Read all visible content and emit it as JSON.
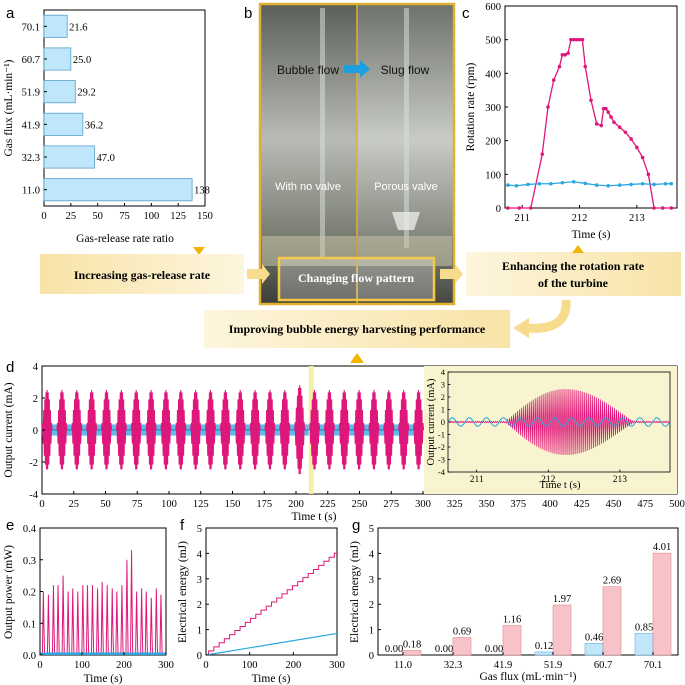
{
  "colors": {
    "magenta": "#e0177a",
    "blue": "#2aa7e0",
    "blue_fill": "#bfe6fb",
    "pink_fill": "#f7c3c8",
    "orange": "#f5b400",
    "inset_bg": "#f7f4cf",
    "box_fill": "#fcefc6"
  },
  "panels": {
    "a": "a",
    "b": "b",
    "c": "c",
    "d": "d",
    "e": "e",
    "f": "f",
    "g": "g"
  },
  "photo": {
    "left_flow": "Bubble flow",
    "right_flow": "Slug flow",
    "left_label": "With no valve",
    "right_label": "Porous valve"
  },
  "flow": {
    "box_left": "Increasing gas-release rate",
    "box_center": "Changing flow pattern",
    "box_right_line1": "Enhancing the rotation rate",
    "box_right_line2": "of the turbine",
    "box_bottom": "Improving bubble energy harvesting performance"
  },
  "chart_data": [
    {
      "id": "a",
      "type": "bar",
      "orientation": "horizontal",
      "xlabel": "Gas-release rate ratio",
      "ylabel": "Gas flux (mL·min⁻¹)",
      "categories": [
        "70.1",
        "60.7",
        "51.9",
        "41.9",
        "32.3",
        "11.0"
      ],
      "values": [
        21.6,
        25.0,
        29.2,
        36.2,
        47.0,
        138
      ],
      "value_labels": [
        "21.6",
        "25.0",
        "29.2",
        "36.2",
        "47.0",
        "138"
      ],
      "xlim": [
        0,
        150
      ],
      "xticks": [
        "0",
        "25",
        "50",
        "75",
        "100",
        "125",
        "150"
      ]
    },
    {
      "id": "c",
      "type": "line",
      "xlabel": "Time (s)",
      "ylabel": "Rotation rate (rpm)",
      "xlim": [
        210.7,
        213.7
      ],
      "ylim": [
        0,
        600
      ],
      "xticks": [
        "211",
        "212",
        "213"
      ],
      "yticks": [
        "0",
        "100",
        "200",
        "300",
        "400",
        "500",
        "600"
      ],
      "series": [
        {
          "name": "Porous valve",
          "color": "magenta",
          "x": [
            210.75,
            210.95,
            211.15,
            211.35,
            211.45,
            211.55,
            211.65,
            211.7,
            211.75,
            211.8,
            211.85,
            211.9,
            211.95,
            212.0,
            212.05,
            212.1,
            212.2,
            212.3,
            212.38,
            212.42,
            212.46,
            212.5,
            212.55,
            212.6,
            212.7,
            212.8,
            212.9,
            213.0,
            213.1,
            213.2,
            213.3,
            213.45,
            213.6
          ],
          "y": [
            0,
            0,
            0,
            160,
            300,
            380,
            420,
            455,
            455,
            460,
            500,
            500,
            500,
            500,
            500,
            420,
            320,
            250,
            245,
            295,
            295,
            285,
            270,
            255,
            240,
            225,
            205,
            180,
            150,
            100,
            0,
            0,
            0
          ]
        },
        {
          "name": "With no valve",
          "color": "blue",
          "x": [
            210.75,
            210.9,
            211.1,
            211.3,
            211.5,
            211.7,
            211.9,
            212.1,
            212.3,
            212.5,
            212.7,
            212.9,
            213.1,
            213.3,
            213.5,
            213.6
          ],
          "y": [
            68,
            66,
            70,
            72,
            72,
            75,
            78,
            73,
            68,
            66,
            68,
            70,
            72,
            70,
            72,
            72
          ]
        }
      ]
    },
    {
      "id": "d",
      "type": "line",
      "xlabel": "Time t (s)",
      "ylabel": "Output current (mA)",
      "xlim": [
        0,
        500
      ],
      "ylim": [
        -4,
        4
      ],
      "xticks": [
        "0",
        "25",
        "50",
        "75",
        "100",
        "125",
        "150",
        "175",
        "200",
        "225",
        "250",
        "275",
        "300",
        "325",
        "350",
        "375",
        "400",
        "425",
        "450",
        "475",
        "500"
      ],
      "yticks": [
        "-4",
        "-2",
        "0",
        "2",
        "4"
      ],
      "burst_period_s": 11.7,
      "burst_count": 26,
      "porous_amplitude_mA": 2.5,
      "no_valve_amplitude_mA": 0.35,
      "highlight_time_s": 212,
      "inset": {
        "xlabel": "Time t (s)",
        "ylabel": "Output current (mA)",
        "xlim": [
          210.6,
          213.7
        ],
        "ylim": [
          -4,
          4
        ],
        "xticks": [
          "211",
          "212",
          "213"
        ],
        "yticks": [
          "-4",
          "-3",
          "-2",
          "-1",
          "0",
          "1",
          "2",
          "3",
          "4"
        ]
      }
    },
    {
      "id": "e",
      "type": "line",
      "xlabel": "Time (s)",
      "ylabel": "Output power (mW)",
      "xlim": [
        0,
        300
      ],
      "ylim": [
        0,
        0.4
      ],
      "xticks": [
        "0",
        "100",
        "200",
        "300"
      ],
      "yticks": [
        "0.0",
        "0.1",
        "0.2",
        "0.3",
        "0.4"
      ],
      "series": [
        {
          "name": "Porous valve",
          "color": "magenta",
          "peak_times": [
            8,
            20,
            32,
            43,
            55,
            67,
            78,
            90,
            102,
            113,
            125,
            137,
            148,
            160,
            172,
            183,
            195,
            207,
            218,
            230,
            242,
            253,
            265,
            277,
            288
          ],
          "peak_values": [
            0.2,
            0.19,
            0.22,
            0.22,
            0.25,
            0.2,
            0.21,
            0.2,
            0.22,
            0.22,
            0.22,
            0.21,
            0.23,
            0.22,
            0.21,
            0.2,
            0.22,
            0.3,
            0.33,
            0.2,
            0.21,
            0.2,
            0.18,
            0.21,
            0.19
          ]
        },
        {
          "name": "With no valve",
          "color": "blue",
          "level": 0.004
        }
      ]
    },
    {
      "id": "f",
      "type": "line",
      "xlabel": "Time (s)",
      "ylabel": "Electrical energy (mJ)",
      "xlim": [
        0,
        300
      ],
      "ylim": [
        0,
        5
      ],
      "xticks": [
        "0",
        "100",
        "200",
        "300"
      ],
      "yticks": [
        "0",
        "1",
        "2",
        "3",
        "4",
        "5"
      ],
      "series": [
        {
          "name": "Porous valve",
          "color": "magenta",
          "final_value": 4.01,
          "steps": 25
        },
        {
          "name": "With no valve",
          "color": "blue",
          "final_value": 0.85
        }
      ]
    },
    {
      "id": "g",
      "type": "bar",
      "xlabel": "Gas flux (mL·min⁻¹)",
      "ylabel": "Electrical energy (mJ)",
      "categories": [
        "11.0",
        "32.3",
        "41.9",
        "51.9",
        "60.7",
        "70.1"
      ],
      "ylim": [
        0,
        5
      ],
      "yticks": [
        "0",
        "1",
        "2",
        "3",
        "4",
        "5"
      ],
      "series": [
        {
          "name": "With no valve",
          "color": "blue_fill",
          "values": [
            0.0,
            0.0,
            0.0,
            0.12,
            0.46,
            0.85
          ],
          "labels": [
            "0.00",
            "0.00",
            "0.00",
            "0.12",
            "0.46",
            "0.85"
          ]
        },
        {
          "name": "Porous valve",
          "color": "pink_fill",
          "values": [
            0.18,
            0.69,
            1.16,
            1.97,
            2.69,
            4.01
          ],
          "labels": [
            "0.18",
            "0.69",
            "1.16",
            "1.97",
            "2.69",
            "4.01"
          ]
        }
      ]
    }
  ]
}
